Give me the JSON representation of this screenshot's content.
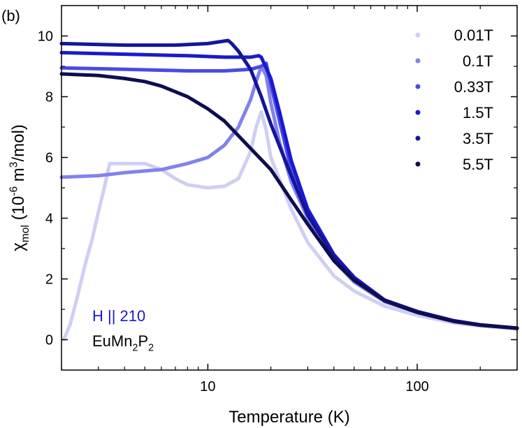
{
  "chart_data": {
    "type": "line",
    "panel_label": "(b)",
    "xlabel": "Temperature (K)",
    "ylabel_parts": [
      {
        "text": "χ"
      },
      {
        "text": "mol",
        "shift": "sub"
      },
      {
        "text": " (10"
      },
      {
        "text": "-6",
        "shift": "super"
      },
      {
        "text": " m"
      },
      {
        "text": "3",
        "shift": "super"
      },
      {
        "text": "/mol)"
      }
    ],
    "annotations": [
      {
        "parts": [
          {
            "text": "H || 210"
          }
        ],
        "color": "#1a1acc"
      },
      {
        "parts": [
          {
            "text": "EuMn"
          },
          {
            "text": "2",
            "shift": "sub"
          },
          {
            "text": "P"
          },
          {
            "text": "2",
            "shift": "sub"
          }
        ],
        "color": "#000000"
      }
    ],
    "xscale": "log",
    "xlim": [
      2,
      300
    ],
    "xticks": [
      10,
      100
    ],
    "xminorticks": [
      2,
      3,
      4,
      5,
      6,
      7,
      8,
      9,
      20,
      30,
      40,
      50,
      60,
      70,
      80,
      90,
      200,
      300
    ],
    "ylim": [
      -1,
      11
    ],
    "yticks": [
      0,
      2,
      4,
      6,
      8,
      10
    ],
    "yminorticks": [
      1,
      3,
      5,
      7,
      9
    ],
    "legend": "upper right",
    "series": [
      {
        "name": "0.01T",
        "color": "#cfcff4",
        "x": [
          2.05,
          2.2,
          2.4,
          2.6,
          2.8,
          3.0,
          3.2,
          3.4,
          4,
          5,
          6,
          7,
          8,
          10,
          12,
          14,
          16,
          17,
          18,
          19,
          20,
          25,
          30,
          40,
          50,
          70,
          100,
          150,
          200,
          300
        ],
        "values": [
          0,
          0.5,
          1.5,
          2.5,
          3.3,
          4.2,
          5,
          5.8,
          5.8,
          5.8,
          5.6,
          5.3,
          5.1,
          5.0,
          5.05,
          5.3,
          6.2,
          7.0,
          7.5,
          6.9,
          6.0,
          4.3,
          3.2,
          2.1,
          1.6,
          1.1,
          0.8,
          0.55,
          0.45,
          0.35
        ]
      },
      {
        "name": "0.1T",
        "color": "#8282ec",
        "x": [
          2,
          3,
          4,
          6,
          8,
          10,
          12,
          14,
          16,
          17,
          18,
          19,
          20,
          22,
          25,
          30,
          40,
          50,
          70,
          100,
          150,
          200,
          300
        ],
        "values": [
          5.35,
          5.4,
          5.5,
          5.6,
          5.8,
          6.0,
          6.4,
          7.0,
          7.9,
          8.5,
          9.0,
          8.7,
          7.8,
          6.5,
          5.2,
          4.0,
          2.6,
          1.9,
          1.25,
          0.9,
          0.6,
          0.48,
          0.37
        ]
      },
      {
        "name": "0.33T",
        "color": "#4a4ae6",
        "x": [
          2,
          4,
          8,
          12,
          16,
          18,
          19,
          20,
          22,
          25,
          30,
          40,
          50,
          70,
          100,
          150,
          200,
          300
        ],
        "values": [
          8.95,
          8.9,
          8.85,
          8.85,
          8.9,
          9.0,
          9.1,
          8.4,
          7.2,
          5.6,
          4.2,
          2.7,
          2.0,
          1.3,
          0.92,
          0.62,
          0.48,
          0.38
        ]
      },
      {
        "name": "1.5T",
        "color": "#1a1acc",
        "x": [
          2,
          4,
          8,
          12,
          16,
          17.5,
          18,
          20,
          22,
          25,
          30,
          40,
          50,
          70,
          100,
          150,
          200,
          300
        ],
        "values": [
          9.45,
          9.4,
          9.35,
          9.3,
          9.3,
          9.35,
          9.3,
          8.6,
          7.5,
          5.9,
          4.3,
          2.8,
          2.05,
          1.3,
          0.93,
          0.62,
          0.49,
          0.38
        ]
      },
      {
        "name": "3.5T",
        "color": "#15159a",
        "x": [
          2,
          4,
          7,
          10,
          12.5,
          13,
          14,
          16,
          18,
          20,
          25,
          30,
          40,
          50,
          70,
          100,
          150,
          200,
          300
        ],
        "values": [
          9.75,
          9.7,
          9.7,
          9.75,
          9.85,
          9.75,
          9.5,
          8.9,
          8.0,
          7.1,
          5.4,
          4.1,
          2.75,
          2.0,
          1.3,
          0.92,
          0.62,
          0.49,
          0.38
        ]
      },
      {
        "name": "5.5T",
        "color": "#0d0d50",
        "x": [
          2,
          3,
          4,
          5,
          6,
          8,
          10,
          12,
          15,
          20,
          25,
          30,
          40,
          50,
          70,
          100,
          150,
          200,
          300
        ],
        "values": [
          8.75,
          8.7,
          8.6,
          8.5,
          8.35,
          8.0,
          7.6,
          7.2,
          6.5,
          5.6,
          4.6,
          3.8,
          2.6,
          1.95,
          1.28,
          0.9,
          0.6,
          0.48,
          0.38
        ]
      }
    ]
  }
}
